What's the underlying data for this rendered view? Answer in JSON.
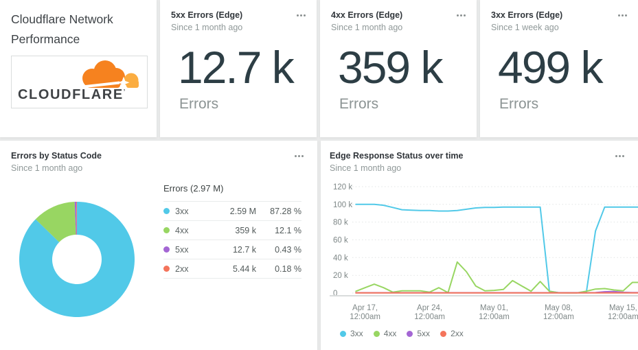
{
  "intro_card": {
    "title": "Cloudflare Network Performance",
    "title_lines": [
      "Cloudflare Network",
      "Performance"
    ],
    "logo": {
      "wordmark": "CLOUDFLARE",
      "mark": "’",
      "cloud_icon": "cloudflare-cloud-icon",
      "cloud_color": "#F6821F",
      "cloud_light_color": "#FBAD41",
      "wordmark_color": "#3F4245"
    }
  },
  "billboards": [
    {
      "title": "5xx Errors (Edge)",
      "subtitle": "Since 1 month ago",
      "value": "12.7 k",
      "label": "Errors"
    },
    {
      "title": "4xx Errors (Edge)",
      "subtitle": "Since 1 month ago",
      "value": "359 k",
      "label": "Errors"
    },
    {
      "title": "3xx Errors (Edge)",
      "subtitle": "Since 1 week ago",
      "value": "499 k",
      "label": "Errors"
    }
  ],
  "donut_card": {
    "title": "Errors by Status Code",
    "subtitle": "Since 1 month ago",
    "table_title": "Errors (2.97 M)",
    "rows": [
      {
        "label": "3xx",
        "value": "2.59 M",
        "pct": "87.28 %",
        "color": "#51C9E8"
      },
      {
        "label": "4xx",
        "value": "359 k",
        "pct": "12.1 %",
        "color": "#98D662"
      },
      {
        "label": "5xx",
        "value": "12.7 k",
        "pct": "0.43 %",
        "color": "#A466D4"
      },
      {
        "label": "2xx",
        "value": "5.44 k",
        "pct": "0.18 %",
        "color": "#F4745B"
      }
    ],
    "chart_data": {
      "type": "pie",
      "donut": true,
      "title": "Errors (2.97 M)",
      "total_label": "2.97 M",
      "labels": [
        "3xx",
        "4xx",
        "5xx",
        "2xx"
      ],
      "values": [
        "2.59 M",
        "359 k",
        "12.7 k",
        "5.44 k"
      ],
      "percents": [
        87.28,
        12.1,
        0.43,
        0.18
      ],
      "colors": [
        "#51C9E8",
        "#98D662",
        "#A466D4",
        "#F4745B"
      ]
    }
  },
  "timeseries_card": {
    "title": "Edge Response Status over time",
    "subtitle": "Since 1 month ago",
    "chart_data": {
      "type": "line",
      "title": "Edge Response Status over time",
      "ylim": [
        0,
        120000
      ],
      "grid": "horizontal-dotted",
      "legend_position": "bottom",
      "unit": "errors per day (values in thousands)",
      "y_ticks": [
        {
          "label": "120 k",
          "value": 120000
        },
        {
          "label": "100 k",
          "value": 100000
        },
        {
          "label": "80 k",
          "value": 80000
        },
        {
          "label": "60 k",
          "value": 60000
        },
        {
          "label": "40 k",
          "value": 40000
        },
        {
          "label": "20 k",
          "value": 20000
        },
        {
          "label": "0",
          "value": 0
        }
      ],
      "x_ticks": [
        {
          "date": "Apr 17,",
          "time": "12:00am",
          "day": 1
        },
        {
          "date": "Apr 24,",
          "time": "12:00am",
          "day": 8
        },
        {
          "date": "May 01,",
          "time": "12:00am",
          "day": 15
        },
        {
          "date": "May 08,",
          "time": "12:00am",
          "day": 22
        },
        {
          "date": "May 15,",
          "time": "12:00am",
          "day": 29
        }
      ],
      "series": [
        {
          "name": "3xx",
          "color": "#51C9E8",
          "values_k": [
            100,
            100,
            100,
            99,
            96.5,
            94,
            93.5,
            93,
            93,
            92.5,
            92.5,
            93,
            94.5,
            96,
            96.5,
            96.5,
            97,
            97,
            97,
            97,
            97,
            2,
            0.4,
            0.4,
            0.4,
            0.4,
            70,
            97,
            97,
            97,
            97
          ]
        },
        {
          "name": "4xx",
          "color": "#98D662",
          "values_k": [
            2,
            6,
            10,
            6,
            1,
            2.5,
            2.5,
            2.5,
            1,
            6,
            0.5,
            35,
            24,
            8,
            2.5,
            3,
            4,
            14,
            8,
            2,
            13,
            2,
            0.3,
            0.2,
            0.2,
            2,
            4.5,
            5,
            3.5,
            2.5,
            12
          ]
        },
        {
          "name": "5xx",
          "color": "#A466D4",
          "values_k": [
            0.3,
            0.3,
            0.3,
            0.3,
            0.3,
            0.3,
            0.3,
            0.3,
            0.3,
            0.3,
            0.3,
            0.3,
            0.3,
            0.3,
            0.3,
            0.3,
            0.3,
            0.3,
            0.3,
            0.3,
            0.3,
            0.3,
            0.3,
            0.3,
            0.3,
            0.3,
            0.5,
            1.5,
            1.8,
            0.8,
            0.5
          ]
        },
        {
          "name": "2xx",
          "color": "#F4745B",
          "values_k": [
            0.15,
            0.15,
            0.15,
            0.15,
            0.15,
            0.15,
            0.15,
            0.15,
            0.15,
            0.15,
            0.15,
            0.15,
            0.15,
            0.15,
            0.15,
            0.15,
            0.15,
            0.15,
            0.15,
            0.15,
            0.15,
            0.15,
            0.15,
            0.15,
            0.15,
            0.15,
            0.15,
            0.15,
            0.15,
            0.15,
            0.15
          ]
        }
      ]
    }
  },
  "icons": {
    "card_menu": "ellipsis-icon"
  }
}
